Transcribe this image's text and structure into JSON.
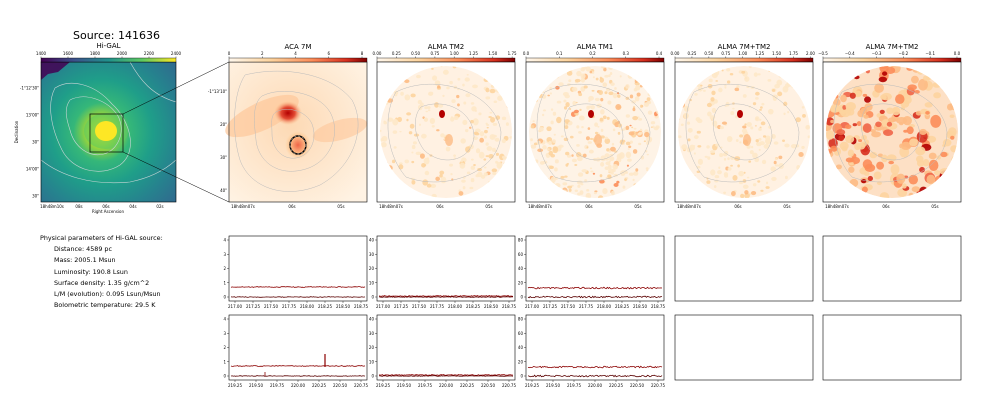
{
  "source_title": "Source: 141636",
  "panels": [
    {
      "title": "Hi-GAL"
    },
    {
      "title": "ACA 7M"
    },
    {
      "title": "ALMA TM2"
    },
    {
      "title": "ALMA TM1"
    },
    {
      "title": "ALMA 7M+TM2"
    },
    {
      "title": "ALMA 7M+TM2"
    }
  ],
  "colorbars": [
    {
      "ticks": [
        "1400",
        "1600",
        "1800",
        "2000",
        "2200",
        "2400"
      ],
      "cmap": "viridis"
    },
    {
      "ticks": [
        "0",
        "2",
        "4",
        "6",
        "8"
      ],
      "cmap": "orrd"
    },
    {
      "ticks": [
        "0.00",
        "0.25",
        "0.50",
        "0.75",
        "1.00",
        "1.25",
        "1.50",
        "1.75"
      ],
      "cmap": "orrd"
    },
    {
      "ticks": [
        "0.0",
        "0.1",
        "0.2",
        "0.3",
        "0.4"
      ],
      "cmap": "orrd"
    },
    {
      "ticks": [
        "0.00",
        "0.25",
        "0.50",
        "0.75",
        "1.00",
        "1.25",
        "1.50",
        "1.75",
        "2.00"
      ],
      "cmap": "orrd"
    },
    {
      "ticks": [
        "−0.5",
        "−0.4",
        "−0.3",
        "−0.2",
        "−0.1",
        "0.0"
      ],
      "cmap": "orrd"
    }
  ],
  "higal_axes": {
    "yticks": [
      "-1°12'30\"",
      "13'00\"",
      "30\"",
      "14'00\"",
      "30\""
    ],
    "xticks": [
      "18h48m10s",
      "08s",
      "06s",
      "04s",
      "02s"
    ],
    "ylabel": "Declination",
    "xlabel": "Right Ascension"
  },
  "aca_axes": {
    "yticks": [
      "-1°13'10\"",
      "20\"",
      "30\"",
      "40\""
    ],
    "xticks": [
      "18h48m07s",
      "06s",
      "05s"
    ]
  },
  "alma_xticks": [
    "18h48m07s",
    "06s",
    "05s"
  ],
  "params": {
    "header": "Physical parameters of Hi-GAL source:",
    "lines": [
      "Distance: 4589 pc",
      "Mass: 2005.1 Msun",
      "Luminosity: 190.8 Lsun",
      "Surface density: 1.35 g/cm^2",
      "L/M (evolution): 0.095 Lsun/Msun",
      "Bolometric temperature: 29.5 K"
    ]
  },
  "spectra": {
    "row1_xticks": [
      "217.00",
      "217.25",
      "217.50",
      "217.75",
      "218.00",
      "218.25",
      "218.50",
      "218.75"
    ],
    "row2_xticks": [
      "219.25",
      "219.50",
      "219.75",
      "220.00",
      "220.25",
      "220.50",
      "220.75"
    ],
    "yticks": [
      [
        "0",
        "1",
        "2",
        "3",
        "4"
      ],
      [
        "0",
        "10",
        "20",
        "30",
        "40"
      ],
      [
        "0",
        "20",
        "40",
        "60",
        "80"
      ]
    ]
  }
}
